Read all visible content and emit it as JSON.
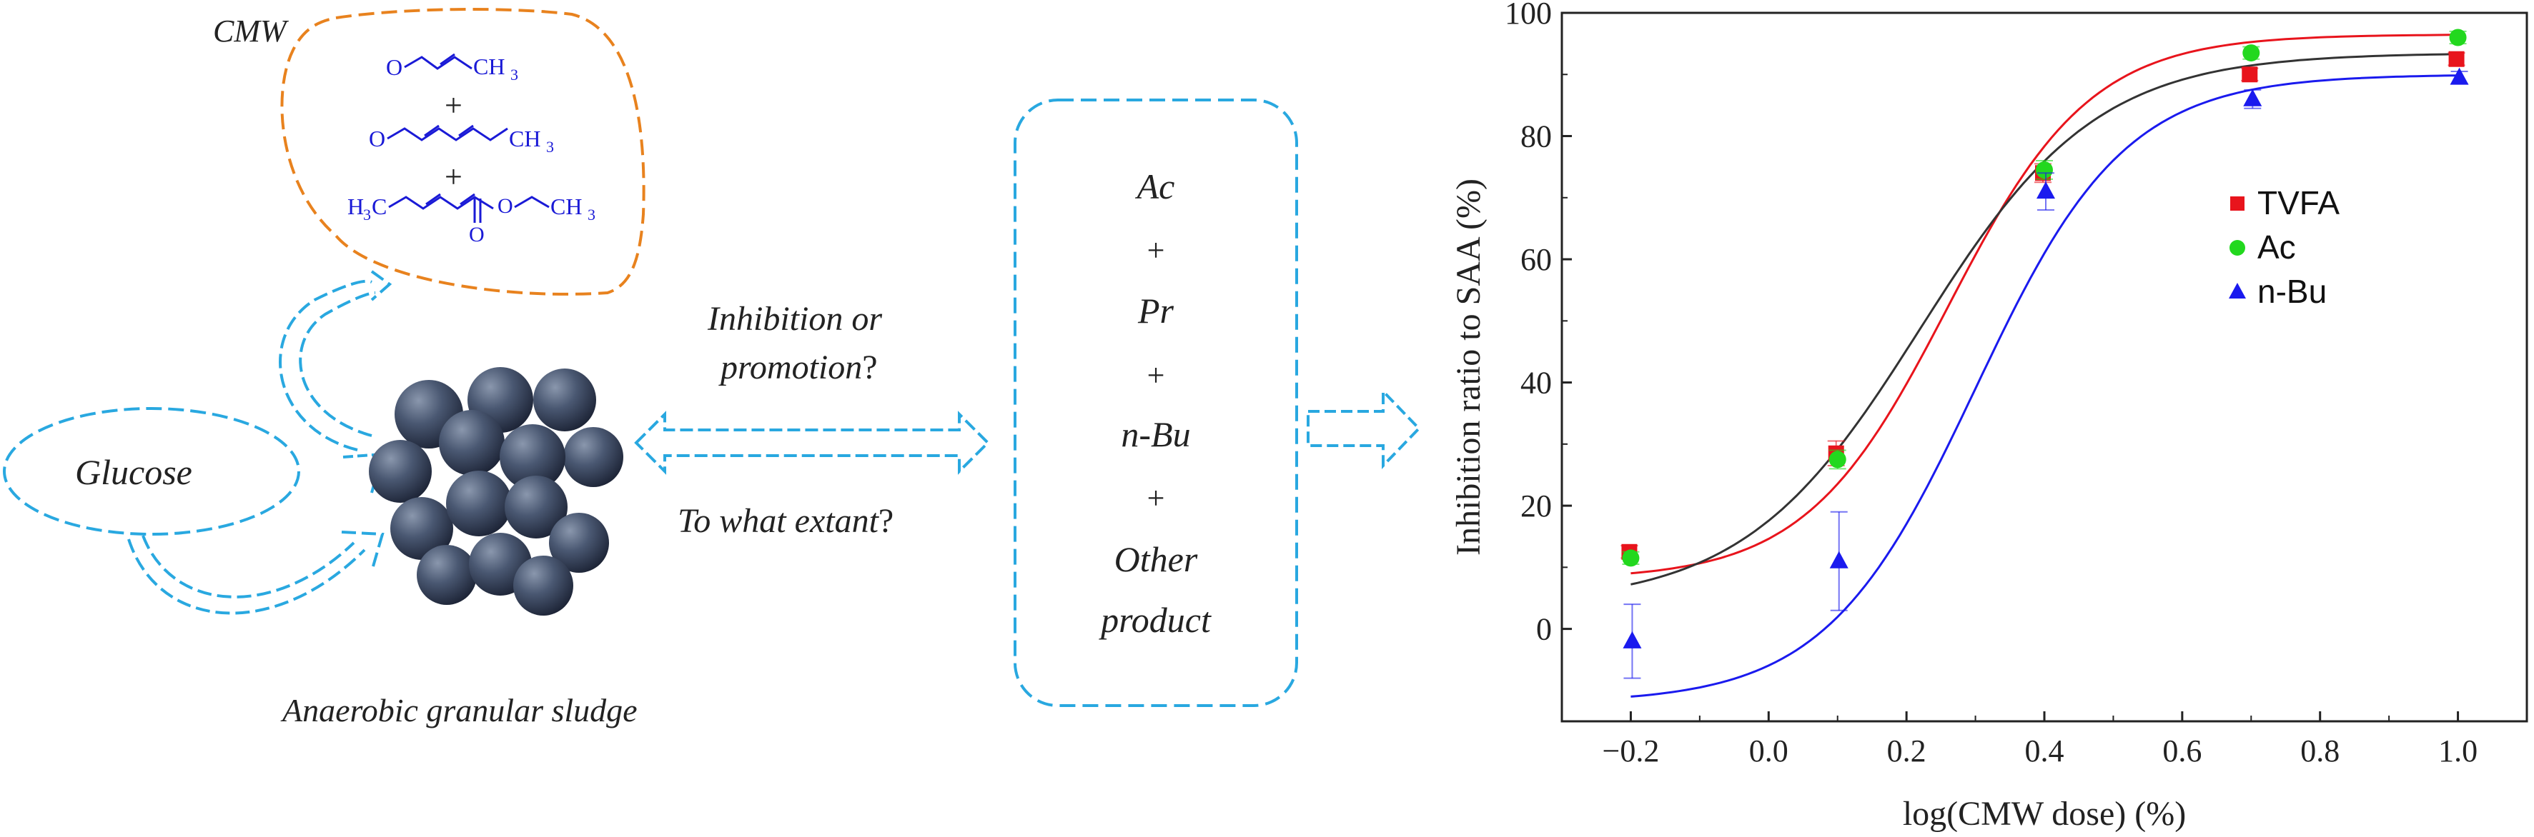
{
  "left_panel": {
    "cmw_label": "CMW",
    "chem_labels": {
      "o1": "O",
      "ch3_1": "CH",
      "plus1": "+",
      "o2": "O",
      "ch3_2": "CH",
      "plus2": "+",
      "h3c": "H",
      "o3a": "O",
      "o3b": "O",
      "ch3_3": "CH",
      "sub3": "3"
    },
    "glucose_label": "Glucose",
    "sludge_label": "Anaerobic granular sludge",
    "question1_line1": "Inhibition or",
    "question1_line2a": "promotion",
    "question1_line2b": "?",
    "question2a": "To what extant",
    "question2b": "?"
  },
  "products_box": {
    "items": [
      "Ac",
      "Pr",
      "n-Bu",
      "Other"
    ],
    "item_last_line2": "product",
    "separator": "+"
  },
  "chart_data": {
    "type": "scatter",
    "title": "",
    "xlabel": "log(CMW dose) (%)",
    "ylabel": "Inhibition ratio to SAA (%)",
    "xlim": [
      -0.3,
      1.1
    ],
    "ylim": [
      -15,
      100
    ],
    "x_ticks": [
      -0.2,
      0.0,
      0.2,
      0.4,
      0.6,
      0.8,
      1.0
    ],
    "x_tick_labels": [
      "−0.2",
      "0.0",
      "0.2",
      "0.4",
      "0.6",
      "0.8",
      "1.0"
    ],
    "y_ticks": [
      0,
      20,
      40,
      60,
      80,
      100
    ],
    "y_tick_labels": [
      "0",
      "20",
      "40",
      "60",
      "80",
      "100"
    ],
    "legend_position": "right",
    "grid": false,
    "series": [
      {
        "name": "TVFA",
        "color": "#e8141c",
        "marker": "square",
        "x": [
          -0.2,
          0.1,
          0.4,
          0.7,
          1.0
        ],
        "y": [
          12.5,
          28.5,
          74,
          90,
          92.5
        ],
        "err": [
          1,
          2,
          1.5,
          1,
          1
        ]
      },
      {
        "name": "Ac",
        "color": "#22d81e",
        "marker": "circle",
        "x": [
          -0.2,
          0.1,
          0.4,
          0.7,
          1.0
        ],
        "y": [
          11.5,
          27.5,
          74.5,
          93.5,
          96
        ],
        "err": [
          1,
          1.5,
          1.5,
          1,
          1
        ]
      },
      {
        "name": "n-Bu",
        "color": "#1a1aee",
        "marker": "triangle",
        "x": [
          -0.2,
          0.1,
          0.4,
          0.7,
          1.0
        ],
        "y": [
          -2,
          11,
          71,
          86,
          89.5
        ],
        "err": [
          6,
          8,
          3,
          1.5,
          1
        ]
      }
    ]
  }
}
